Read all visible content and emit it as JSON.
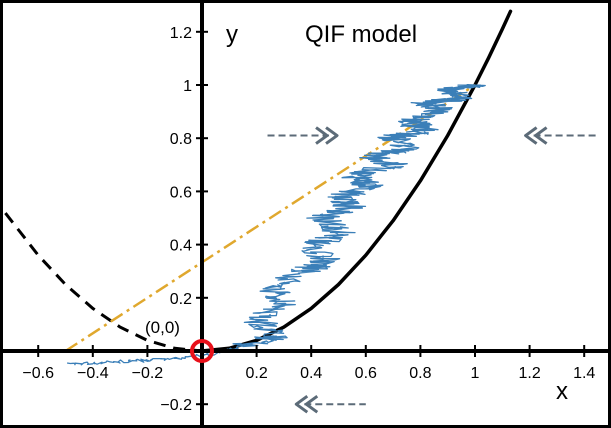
{
  "chart_data": {
    "type": "line",
    "title": "QIF model",
    "xlabel": "x",
    "ylabel": "y",
    "xlim": [
      -0.7,
      1.5
    ],
    "ylim": [
      -0.28,
      1.28
    ],
    "grid": false,
    "x_ticks": [
      {
        "value": -0.6,
        "label": "−0.6"
      },
      {
        "value": -0.4,
        "label": "−0.4"
      },
      {
        "value": -0.2,
        "label": "−0.2"
      },
      {
        "value": 0.2,
        "label": "0.2"
      },
      {
        "value": 0.4,
        "label": "0.4"
      },
      {
        "value": 0.6,
        "label": "0.6"
      },
      {
        "value": 0.8,
        "label": "0.8"
      },
      {
        "value": 1.0,
        "label": "1"
      },
      {
        "value": 1.2,
        "label": "1.2"
      },
      {
        "value": 1.4,
        "label": "1.4"
      }
    ],
    "y_ticks": [
      {
        "value": 1.2,
        "label": "1.2"
      },
      {
        "value": 1.0,
        "label": "1"
      },
      {
        "value": 0.8,
        "label": "0.8"
      },
      {
        "value": 0.6,
        "label": "0.6"
      },
      {
        "value": 0.4,
        "label": "0.4"
      },
      {
        "value": 0.2,
        "label": "0.2"
      },
      {
        "value": -0.2,
        "label": "−0.2"
      }
    ],
    "origin_label": "(0,0)",
    "origin_marker": {
      "x": 0,
      "y": 0,
      "color": "#e8101a"
    },
    "series": [
      {
        "style": "solid",
        "color": "#000000",
        "x": [
          0,
          0.1,
          0.2,
          0.3,
          0.4,
          0.5,
          0.6,
          0.7,
          0.8,
          0.9,
          1.0,
          1.05,
          1.1,
          1.13
        ],
        "y": [
          0,
          0.01,
          0.04,
          0.09,
          0.16,
          0.25,
          0.36,
          0.49,
          0.64,
          0.81,
          1.0,
          1.1025,
          1.21,
          1.2769
        ]
      },
      {
        "style": "dashed",
        "color": "#000000",
        "x": [
          -0.72,
          -0.6,
          -0.5,
          -0.4,
          -0.3,
          -0.2,
          -0.1,
          0
        ],
        "y": [
          0.5184,
          0.36,
          0.25,
          0.16,
          0.09,
          0.04,
          0.01,
          0
        ]
      },
      {
        "style": "dash-dot",
        "color": "#e0a82e",
        "x": [
          -0.5,
          1.0
        ],
        "y": [
          0,
          1.0
        ]
      },
      {
        "style": "noisy",
        "color": "#3b7fb8",
        "x": [
          -0.49,
          -0.3,
          -0.1,
          0.05,
          0.15,
          0.28,
          0.2,
          0.3,
          0.25,
          0.38,
          0.45,
          0.4,
          0.52,
          0.44,
          0.55,
          0.5,
          0.62,
          0.56,
          0.7,
          0.62,
          0.75,
          0.7,
          0.82,
          0.76,
          0.88,
          0.82,
          0.95,
          0.9,
          1.0
        ],
        "y": [
          -0.05,
          -0.04,
          -0.03,
          -0.01,
          0.02,
          0.06,
          0.12,
          0.18,
          0.24,
          0.3,
          0.34,
          0.4,
          0.44,
          0.5,
          0.54,
          0.58,
          0.62,
          0.66,
          0.7,
          0.73,
          0.76,
          0.8,
          0.83,
          0.86,
          0.9,
          0.93,
          0.95,
          0.98,
          1.0
        ],
        "jitter": 0.06
      }
    ],
    "arrows": [
      {
        "y": 0.81,
        "x_start": 0.48,
        "x_end": 0.24,
        "direction": "right"
      },
      {
        "y": 0.81,
        "x_start": 1.45,
        "x_end": 1.2,
        "direction": "left"
      },
      {
        "y": -0.2,
        "x_start": 0.6,
        "x_end": 0.36,
        "direction": "left"
      }
    ],
    "arrow_color": "#5c6b78"
  }
}
